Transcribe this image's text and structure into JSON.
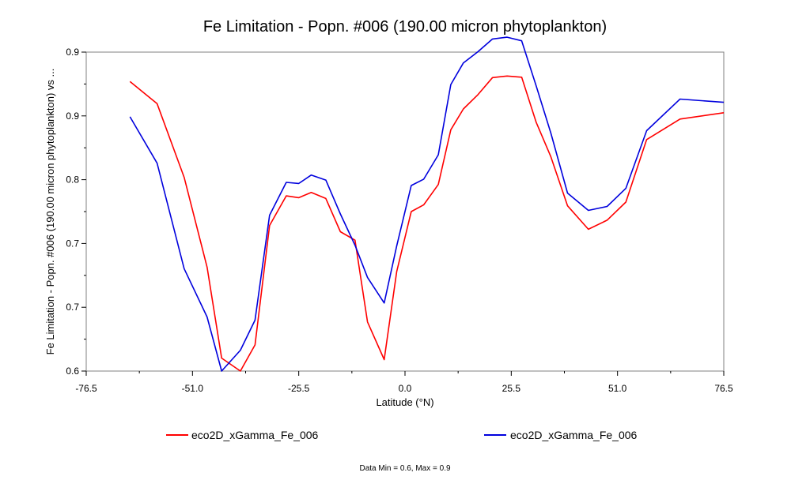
{
  "chart_data": {
    "type": "line",
    "title": "Fe Limitation - Popn. #006 (190.00 micron phytoplankton)",
    "xlabel": "Latitude (°N)",
    "ylabel": "Fe Limitation - Popn. #006 (190.00 micron phytoplankton) vs ...",
    "xlim": [
      -76.5,
      76.5
    ],
    "ylim": [
      0.6,
      0.9
    ],
    "xticks": [
      "-76.5",
      "-51.0",
      "-25.5",
      "0.0",
      "25.5",
      "51.0",
      "76.5"
    ],
    "yticks": [
      "0.6",
      "0.7",
      "0.7",
      "0.8",
      "0.9",
      "0.9"
    ],
    "series": [
      {
        "name": "eco2D_xGamma_Fe_006",
        "color": "#ff0000",
        "x": [
          -66.0,
          -59.5,
          -53.0,
          -47.5,
          -44.0,
          -39.5,
          -36.0,
          -32.5,
          -28.5,
          -25.5,
          -22.5,
          -19.0,
          -15.5,
          -12.0,
          -9.0,
          -5.0,
          -2.0,
          1.5,
          4.5,
          8.0,
          11.0,
          14.0,
          17.5,
          21.0,
          24.5,
          28.0,
          31.5,
          35.0,
          39.0,
          44.0,
          48.5,
          53.0,
          58.0,
          66.0,
          76.5
        ],
        "y": [
          0.8723,
          0.8515,
          0.7822,
          0.6977,
          0.6122,
          0.6,
          0.6246,
          0.7369,
          0.7648,
          0.7631,
          0.768,
          0.7623,
          0.7311,
          0.7231,
          0.6462,
          0.6108,
          0.6935,
          0.75,
          0.7564,
          0.7755,
          0.8269,
          0.8465,
          0.86,
          0.876,
          0.8775,
          0.8764,
          0.8338,
          0.8015,
          0.7554,
          0.7334,
          0.7419,
          0.7589,
          0.8177,
          0.837,
          0.843
        ]
      },
      {
        "name": "eco2D_xGamma_Fe_006",
        "color": "#0000dd",
        "x": [
          -66.0,
          -59.5,
          -53.0,
          -47.5,
          -44.0,
          -39.5,
          -36.0,
          -32.5,
          -28.5,
          -25.5,
          -22.5,
          -19.0,
          -15.5,
          -12.0,
          -9.0,
          -5.0,
          -2.0,
          1.5,
          4.5,
          8.0,
          11.0,
          14.0,
          17.5,
          21.0,
          24.5,
          28.0,
          31.5,
          35.0,
          39.0,
          44.0,
          48.5,
          53.0,
          58.0,
          66.0,
          76.5
        ],
        "y": [
          0.8392,
          0.7955,
          0.6963,
          0.6509,
          0.6,
          0.6196,
          0.6479,
          0.7466,
          0.7775,
          0.7764,
          0.7844,
          0.7796,
          0.7478,
          0.7184,
          0.6881,
          0.664,
          0.7176,
          0.7745,
          0.7805,
          0.8034,
          0.8695,
          0.8898,
          0.9004,
          0.9123,
          0.914,
          0.9106,
          0.8681,
          0.8238,
          0.7674,
          0.7511,
          0.7548,
          0.7718,
          0.8261,
          0.8558,
          0.8528
        ]
      }
    ]
  },
  "footer": "Data Min = 0.6, Max = 0.9"
}
